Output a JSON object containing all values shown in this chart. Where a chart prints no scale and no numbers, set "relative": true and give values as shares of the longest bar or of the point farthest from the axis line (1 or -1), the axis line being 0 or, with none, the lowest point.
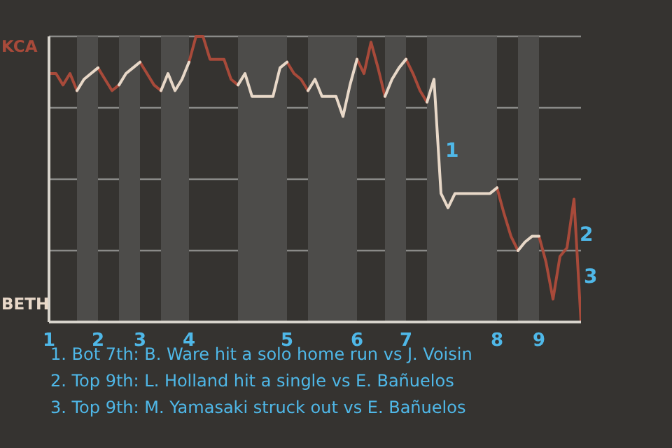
{
  "chart_data": {
    "type": "line",
    "relative": true,
    "grid": "y",
    "categories": [
      "1",
      null,
      null,
      null,
      null,
      null,
      null,
      "2",
      null,
      null,
      null,
      null,
      null,
      "3",
      null,
      null,
      null,
      null,
      null,
      null,
      "4",
      null,
      null,
      null,
      null,
      null,
      null,
      null,
      null,
      null,
      null,
      null,
      null,
      null,
      "5",
      null,
      null,
      null,
      null,
      null,
      null,
      null,
      null,
      null,
      "6",
      null,
      null,
      null,
      null,
      null,
      null,
      "7",
      null,
      null,
      null,
      null,
      null,
      null,
      null,
      null,
      null,
      null,
      null,
      null,
      "8",
      null,
      null,
      null,
      null,
      null,
      "9",
      null,
      null,
      null,
      null,
      null,
      null
    ],
    "series": [
      {
        "color": "#a84a3a",
        "values": [
          0.87,
          0.87,
          0.83,
          0.87,
          0.81,
          null,
          null,
          0.89,
          0.85,
          0.81,
          0.83,
          null,
          null,
          0.91,
          0.87,
          0.83,
          0.81,
          null,
          null,
          null,
          0.91,
          1,
          1,
          0.92,
          0.92,
          0.92,
          0.85,
          0.83,
          null,
          null,
          null,
          null,
          null,
          null,
          0.91,
          0.87,
          0.85,
          0.81,
          null,
          null,
          null,
          null,
          null,
          null,
          0.92,
          0.87,
          0.98,
          0.89,
          0.79,
          null,
          null,
          0.92,
          0.87,
          0.81,
          0.77,
          null,
          null,
          null,
          null,
          null,
          null,
          null,
          null,
          null,
          0.47,
          0.38,
          0.3,
          0.25,
          null,
          null,
          0.3,
          0.21,
          0.08,
          0.23,
          0.26,
          0.43,
          0
        ]
      },
      {
        "color": "#e8d8c8",
        "values": [
          null,
          null,
          null,
          null,
          0.81,
          0.85,
          0.87,
          0.89,
          null,
          null,
          0.83,
          0.87,
          0.89,
          0.91,
          null,
          null,
          0.81,
          0.87,
          0.81,
          0.85,
          0.91,
          null,
          null,
          null,
          null,
          null,
          null,
          0.83,
          0.87,
          0.79,
          0.79,
          0.79,
          0.79,
          0.89,
          0.91,
          null,
          null,
          0.81,
          0.85,
          0.79,
          0.79,
          0.79,
          0.72,
          0.83,
          0.92,
          null,
          null,
          null,
          0.79,
          0.85,
          0.89,
          0.92,
          null,
          null,
          0.77,
          0.85,
          0.45,
          0.4,
          0.45,
          0.45,
          0.45,
          0.45,
          0.45,
          0.45,
          0.47,
          null,
          null,
          0.25,
          0.28,
          0.3,
          0.3,
          null,
          null,
          null,
          null,
          null,
          null
        ]
      }
    ],
    "annotations": [
      "KCA",
      "BETH",
      "1",
      "2",
      "3",
      "1. Bot 7th: B. Ware hit a solo home run vs J. Voisin",
      "2. Top 9th: L. Holland hit a single vs E. Bañuelos",
      "3. Top 9th: M. Yamasaki struck out vs E. Bañuelos"
    ]
  }
}
